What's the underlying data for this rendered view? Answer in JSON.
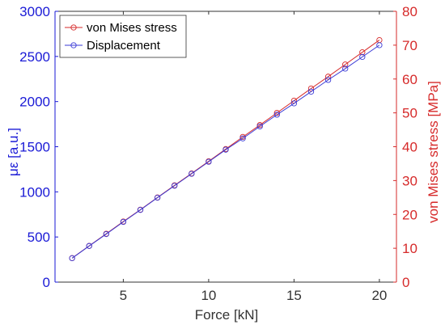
{
  "chart_data": {
    "type": "line",
    "xlabel": "Force [kN]",
    "ylabel_left": "με [a.u.]",
    "ylabel_right": "von Mises stress [MPa]",
    "xlim": [
      1,
      21
    ],
    "ylim_left": [
      0,
      3000
    ],
    "ylim_right": [
      0,
      80
    ],
    "xticks": [
      5,
      10,
      15,
      20
    ],
    "yticks_left": [
      0,
      500,
      1000,
      1500,
      2000,
      2500,
      3000
    ],
    "yticks_right": [
      0,
      10,
      20,
      30,
      40,
      50,
      60,
      70,
      80
    ],
    "grid": false,
    "legend_position": "top-left",
    "x": [
      2,
      3,
      4,
      5,
      6,
      7,
      8,
      9,
      10,
      11,
      12,
      13,
      14,
      15,
      16,
      17,
      18,
      19,
      20
    ],
    "series": [
      {
        "name": "von Mises stress",
        "axis": "right",
        "color": "#d62a2a",
        "values": [
          7.1,
          10.7,
          14.3,
          17.9,
          21.4,
          25.0,
          28.6,
          32.1,
          35.7,
          39.3,
          42.9,
          46.4,
          50.0,
          53.6,
          57.2,
          60.7,
          64.3,
          67.9,
          71.5
        ]
      },
      {
        "name": "Displacement",
        "axis": "left",
        "color": "#3a3ad6",
        "values": [
          265,
          400,
          532,
          667,
          800,
          935,
          1068,
          1200,
          1333,
          1467,
          1592,
          1725,
          1855,
          1980,
          2110,
          2240,
          2365,
          2495,
          2625
        ]
      }
    ]
  }
}
